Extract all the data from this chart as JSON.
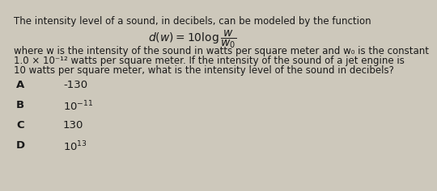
{
  "bg_color": "#cdc8bb",
  "text_color": "#1a1a1a",
  "title_line1": "The intensity level of a sound, in decibels, can be modeled by the function",
  "body_line1": "where w is the intensity of the sound in watts per square meter and w₀ is the constant",
  "body_line2": "1.0 × 10⁻¹² watts per square meter. If the intensity of the sound of a jet engine is",
  "body_line3": "10 watts per square meter, what is the intensity level of the sound in decibels?",
  "choices": [
    {
      "label": "A",
      "answer": "-130",
      "superscript": null
    },
    {
      "label": "B",
      "answer": "10",
      "superscript": "-11"
    },
    {
      "label": "C",
      "answer": "130",
      "superscript": null
    },
    {
      "label": "D",
      "answer": "10",
      "superscript": "13"
    }
  ],
  "font_size_title": 8.5,
  "font_size_formula": 10,
  "font_size_body": 8.5,
  "font_size_choices": 9.5,
  "font_size_label": 9.5
}
